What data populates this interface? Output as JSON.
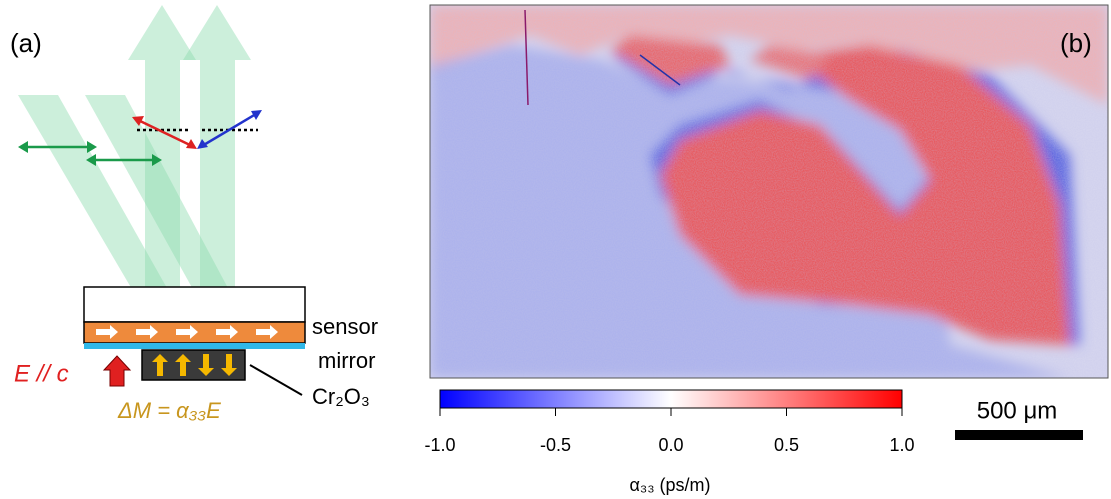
{
  "panel_a": {
    "label": "(a)",
    "layers": [
      "sensor",
      "mirror",
      "Cr₂O₃"
    ],
    "field": "E // c",
    "equation": "ΔM = α₃₃E"
  },
  "panel_b": {
    "label": "(b)",
    "scale_bar": "500 μm",
    "colorbar": {
      "lim": [
        -1,
        1
      ],
      "ticks": [
        {
          "value": -1,
          "label": "-1.0"
        },
        {
          "value": -0.5,
          "label": "-0.5"
        },
        {
          "value": 0,
          "label": "0.0"
        },
        {
          "value": 0.5,
          "label": "0.5"
        },
        {
          "value": 1,
          "label": "1.0"
        }
      ],
      "label": "α₃₃ (ps/m)"
    }
  }
}
